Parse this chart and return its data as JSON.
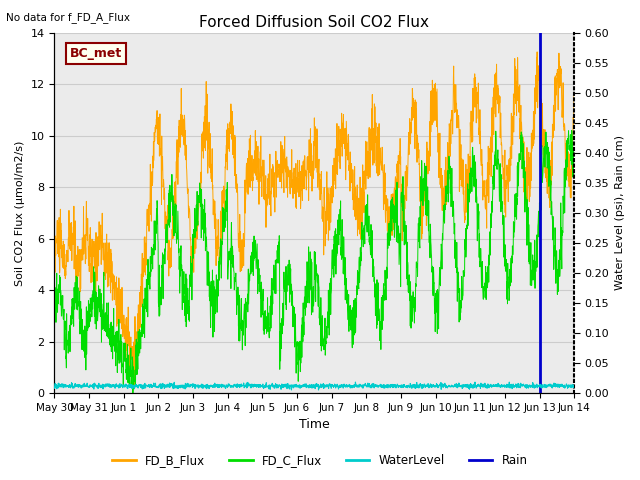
{
  "title": "Forced Diffusion Soil CO2 Flux",
  "no_data_text": "No data for f_FD_A_Flux",
  "bc_met_label": "BC_met",
  "xlabel": "Time",
  "ylabel_left": "Soil CO2 Flux (μmol/m2/s)",
  "ylabel_right": "Water Level (psi), Rain (cm)",
  "ylim_left": [
    0,
    14
  ],
  "ylim_right": [
    0,
    0.6
  ],
  "yticks_left": [
    0,
    2,
    4,
    6,
    8,
    10,
    12,
    14
  ],
  "yticks_right": [
    0.0,
    0.05,
    0.1,
    0.15,
    0.2,
    0.25,
    0.3,
    0.35,
    0.4,
    0.45,
    0.5,
    0.55,
    0.6
  ],
  "colors": {
    "FD_B_Flux": "#FFA500",
    "FD_C_Flux": "#00DD00",
    "WaterLevel": "#00CCCC",
    "Rain": "#0000CC"
  },
  "grid_color": "#CCCCCC",
  "bg_color": "#EBEBEB",
  "bc_met_bg": "#FFFFF0",
  "bc_met_border": "#8B0000"
}
